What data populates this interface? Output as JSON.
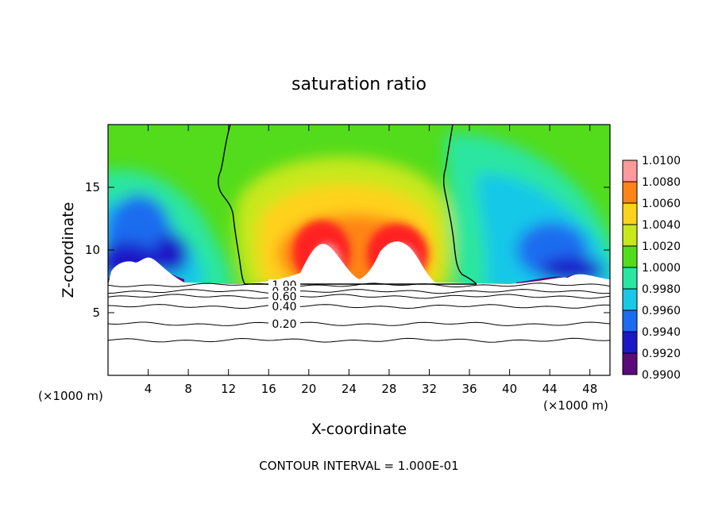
{
  "chart_data": {
    "type": "heatmap",
    "title": "saturation ratio",
    "xlabel": "X-coordinate",
    "ylabel": "Z-coordinate",
    "x_unit_left": "(×1000 m)",
    "x_unit_right": "(×1000 m)",
    "footer": "CONTOUR INTERVAL = 1.000E-01",
    "xlim": [
      0,
      50
    ],
    "ylim": [
      0,
      20
    ],
    "x_ticks": [
      4,
      8,
      12,
      16,
      20,
      24,
      28,
      32,
      36,
      40,
      44,
      48
    ],
    "y_ticks": [
      5,
      10,
      15
    ],
    "colorbar": {
      "levels": [
        0.99,
        0.992,
        0.994,
        0.996,
        0.998,
        1.0,
        1.002,
        1.004,
        1.006,
        1.008,
        1.01
      ],
      "labels": [
        "0.9900",
        "0.9920",
        "0.9940",
        "0.9960",
        "0.9980",
        "1.0000",
        "1.0020",
        "1.0040",
        "1.0060",
        "1.0080",
        "1.0100"
      ],
      "colors": [
        "#5a0a7a",
        "#1c18c8",
        "#1a6cf0",
        "#18c8e8",
        "#2ae6a0",
        "#52dc1c",
        "#c8e81c",
        "#ffd21e",
        "#ff8418",
        "#ff2020",
        "#ff9a9a"
      ]
    },
    "contour_lines": [
      {
        "label": "1.00",
        "z": 7.2
      },
      {
        "label": "0.80",
        "z": 6.7
      },
      {
        "label": "0.60",
        "z": 6.3
      },
      {
        "label": "0.40",
        "z": 5.5
      },
      {
        "label": "0.20",
        "z": 4.1
      },
      {
        "label": "",
        "z": 2.8
      }
    ],
    "unity_contour": {
      "left_x_range": [
        10.8,
        14.0
      ],
      "right_x_range": [
        32.0,
        37.0
      ],
      "z_range": [
        7.2,
        20
      ]
    }
  }
}
